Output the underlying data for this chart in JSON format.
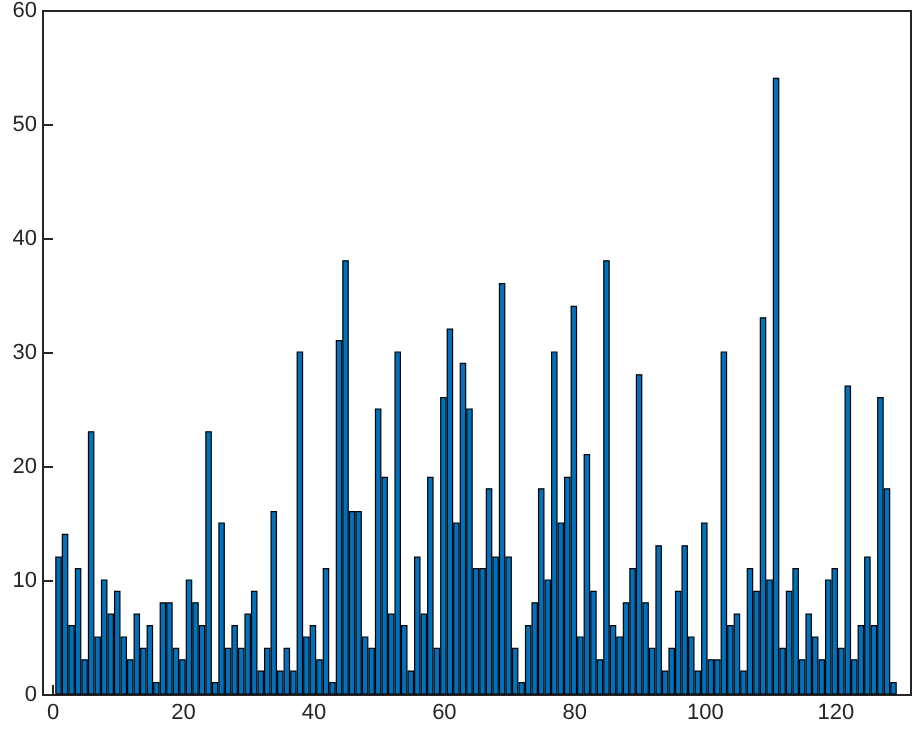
{
  "chart_data": {
    "type": "bar",
    "x": [
      1,
      2,
      3,
      4,
      5,
      6,
      7,
      8,
      9,
      10,
      11,
      12,
      13,
      14,
      15,
      16,
      17,
      18,
      19,
      20,
      21,
      22,
      23,
      24,
      25,
      26,
      27,
      28,
      29,
      30,
      31,
      32,
      33,
      34,
      35,
      36,
      37,
      38,
      39,
      40,
      41,
      42,
      43,
      44,
      45,
      46,
      47,
      48,
      49,
      50,
      51,
      52,
      53,
      54,
      55,
      56,
      57,
      58,
      59,
      60,
      61,
      62,
      63,
      64,
      65,
      66,
      67,
      68,
      69,
      70,
      71,
      72,
      73,
      74,
      75,
      76,
      77,
      78,
      79,
      80,
      81,
      82,
      83,
      84,
      85,
      86,
      87,
      88,
      89,
      90,
      91,
      92,
      93,
      94,
      95,
      96,
      97,
      98,
      99,
      100,
      101,
      102,
      103,
      104,
      105,
      106,
      107,
      108,
      109,
      110,
      111,
      112,
      113,
      114,
      115,
      116,
      117,
      118,
      119,
      120,
      121,
      122,
      123,
      124,
      125,
      126,
      127,
      128,
      129
    ],
    "values": [
      12,
      14,
      6,
      11,
      3,
      23,
      5,
      10,
      7,
      9,
      5,
      3,
      7,
      4,
      6,
      1,
      8,
      8,
      4,
      3,
      10,
      8,
      6,
      23,
      1,
      15,
      4,
      6,
      4,
      7,
      9,
      2,
      4,
      16,
      2,
      4,
      2,
      30,
      5,
      6,
      3,
      11,
      1,
      31,
      38,
      16,
      16,
      5,
      4,
      25,
      19,
      7,
      30,
      6,
      2,
      12,
      7,
      19,
      4,
      26,
      32,
      15,
      29,
      25,
      11,
      11,
      18,
      12,
      36,
      12,
      4,
      1,
      6,
      8,
      18,
      10,
      30,
      15,
      19,
      34,
      5,
      21,
      9,
      3,
      38,
      6,
      5,
      8,
      11,
      28,
      8,
      4,
      13,
      2,
      4,
      9,
      13,
      5,
      2,
      15,
      3,
      3,
      30,
      6,
      7,
      2,
      11,
      9,
      33,
      10,
      54,
      4,
      9,
      11,
      3,
      7,
      5,
      3,
      10,
      11,
      4,
      27,
      3,
      6,
      12,
      6,
      26,
      18,
      1
    ],
    "color": "#0072bd",
    "xlim": [
      0,
      130
    ],
    "xticks": [
      0,
      20,
      40,
      60,
      80,
      100,
      120
    ],
    "ylim": [
      0,
      60
    ],
    "yticks": [
      0,
      10,
      20,
      30,
      40,
      50,
      60
    ],
    "grid": false
  }
}
